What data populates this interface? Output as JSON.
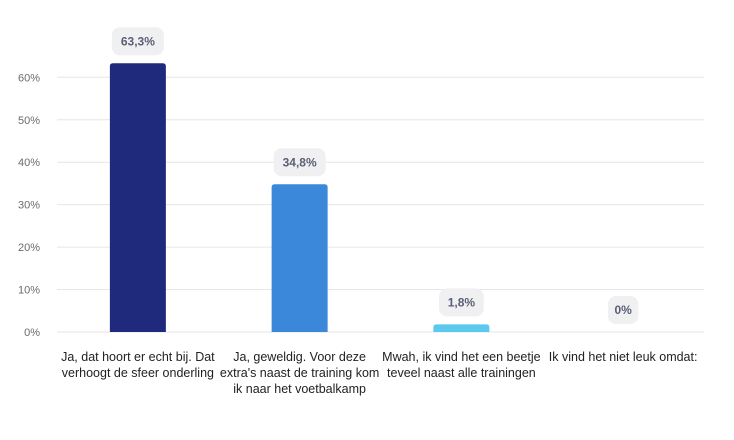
{
  "chart_data": {
    "type": "bar",
    "categories": [
      "Ja, dat hoort er echt bij. Dat verhoogt de sfeer onderling",
      "Ja, geweldig. Voor deze extra's naast de training kom ik naar het voetbalkamp",
      "Mwah, ik vind het een beetje teveel naast alle trainingen",
      "Ik vind het niet leuk omdat:"
    ],
    "values": [
      63.3,
      34.8,
      1.8,
      0
    ],
    "value_labels": [
      "63,3%",
      "34,8%",
      "1,8%",
      "0%"
    ],
    "bar_colors": [
      "#1f2a7c",
      "#3b87d9",
      "#5bc8ee",
      "#5bc8ee"
    ],
    "y_ticks": [
      "0%",
      "10%",
      "20%",
      "30%",
      "40%",
      "50%",
      "60%"
    ],
    "y_tick_values": [
      0,
      10,
      20,
      30,
      40,
      50,
      60
    ],
    "ylim": [
      0,
      63.3
    ],
    "grid": true,
    "legend": "none"
  }
}
